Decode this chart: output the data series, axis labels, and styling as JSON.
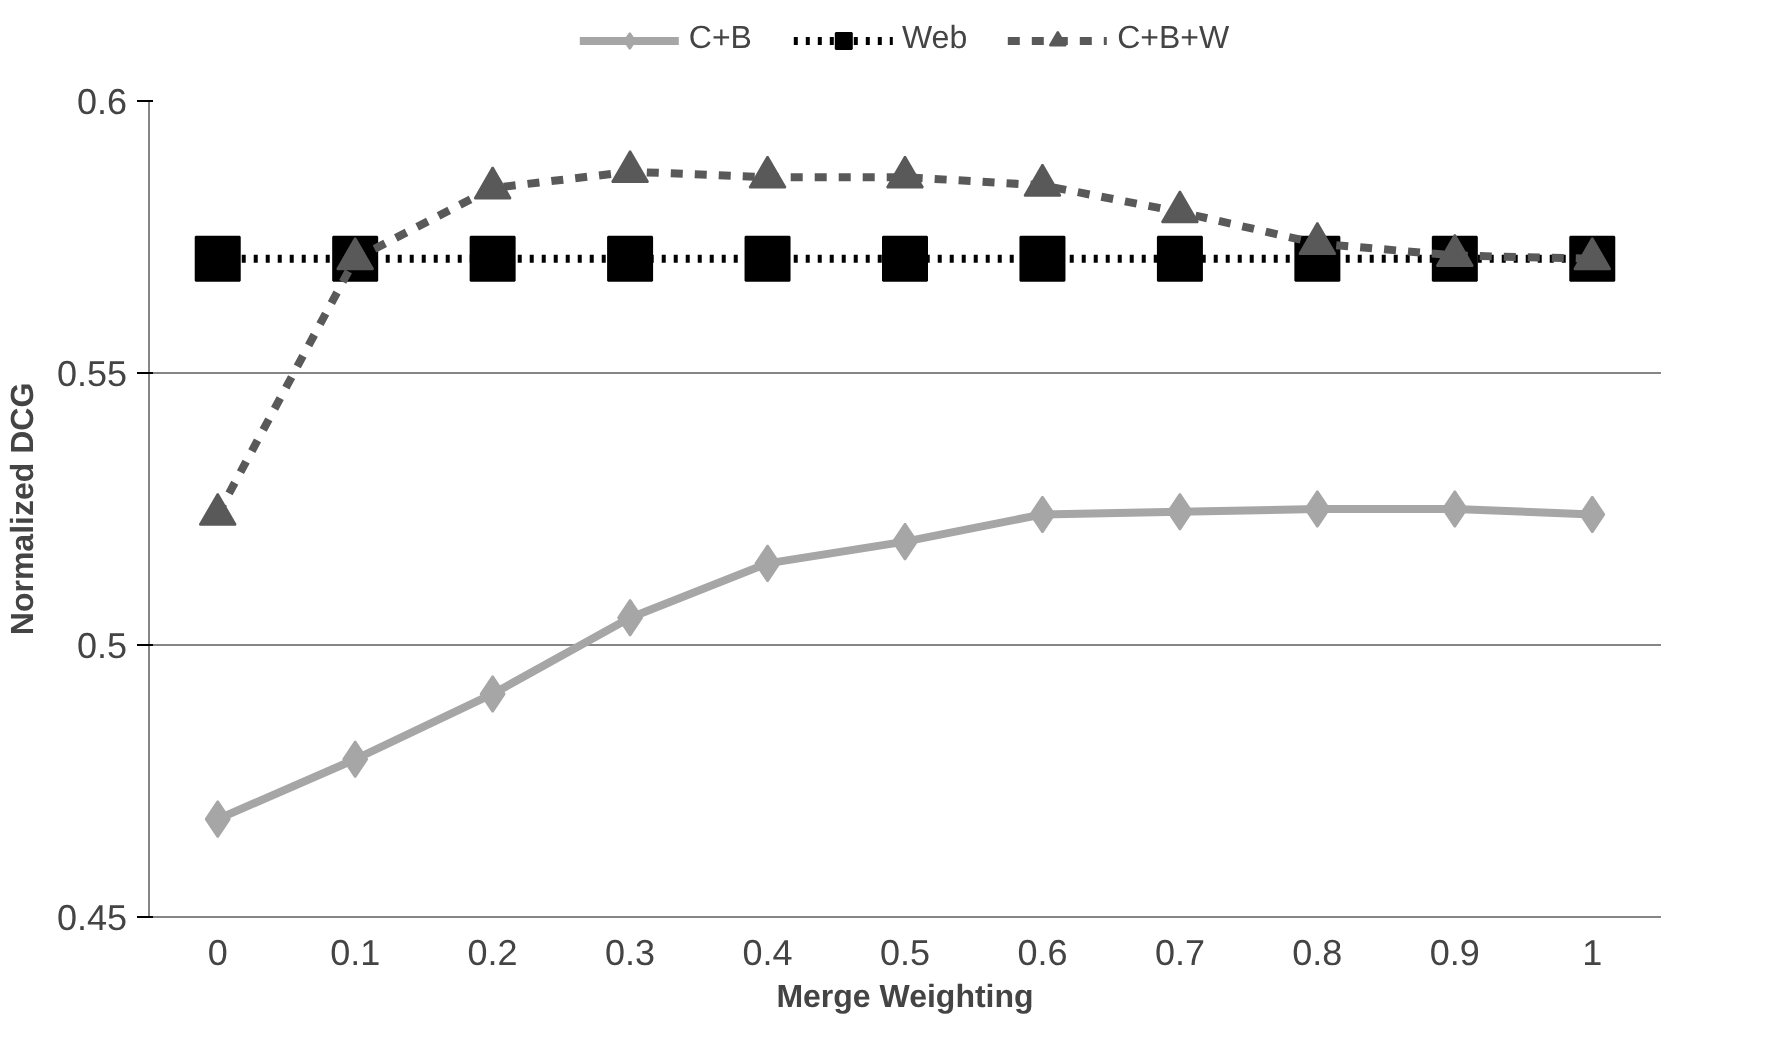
{
  "chart_data": {
    "type": "line",
    "xlabel": "Merge Weighting",
    "ylabel": "Normalized DCG",
    "categories": [
      "0",
      "0.1",
      "0.2",
      "0.3",
      "0.4",
      "0.5",
      "0.6",
      "0.7",
      "0.8",
      "0.9",
      "1"
    ],
    "ylim": [
      0.45,
      0.6
    ],
    "yticks": [
      0.45,
      0.5,
      0.55,
      0.6
    ],
    "grid": "y",
    "legend": "top",
    "series": [
      {
        "name": "C+B",
        "color": "#a6a6a6",
        "marker": "diamond",
        "line_style": "solid",
        "values": [
          0.468,
          0.479,
          0.491,
          0.505,
          0.515,
          0.519,
          0.524,
          0.5245,
          0.525,
          0.525,
          0.524
        ]
      },
      {
        "name": "Web",
        "color": "#000000",
        "marker": "square",
        "line_style": "dotted",
        "values": [
          0.571,
          0.571,
          0.571,
          0.571,
          0.571,
          0.571,
          0.571,
          0.571,
          0.571,
          0.571,
          0.571
        ]
      },
      {
        "name": "C+B+W",
        "color": "#595959",
        "marker": "triangle",
        "line_style": "dashed",
        "values": [
          0.524,
          0.571,
          0.584,
          0.587,
          0.586,
          0.586,
          0.5845,
          0.5796,
          0.5738,
          0.5716,
          0.571
        ]
      }
    ]
  }
}
